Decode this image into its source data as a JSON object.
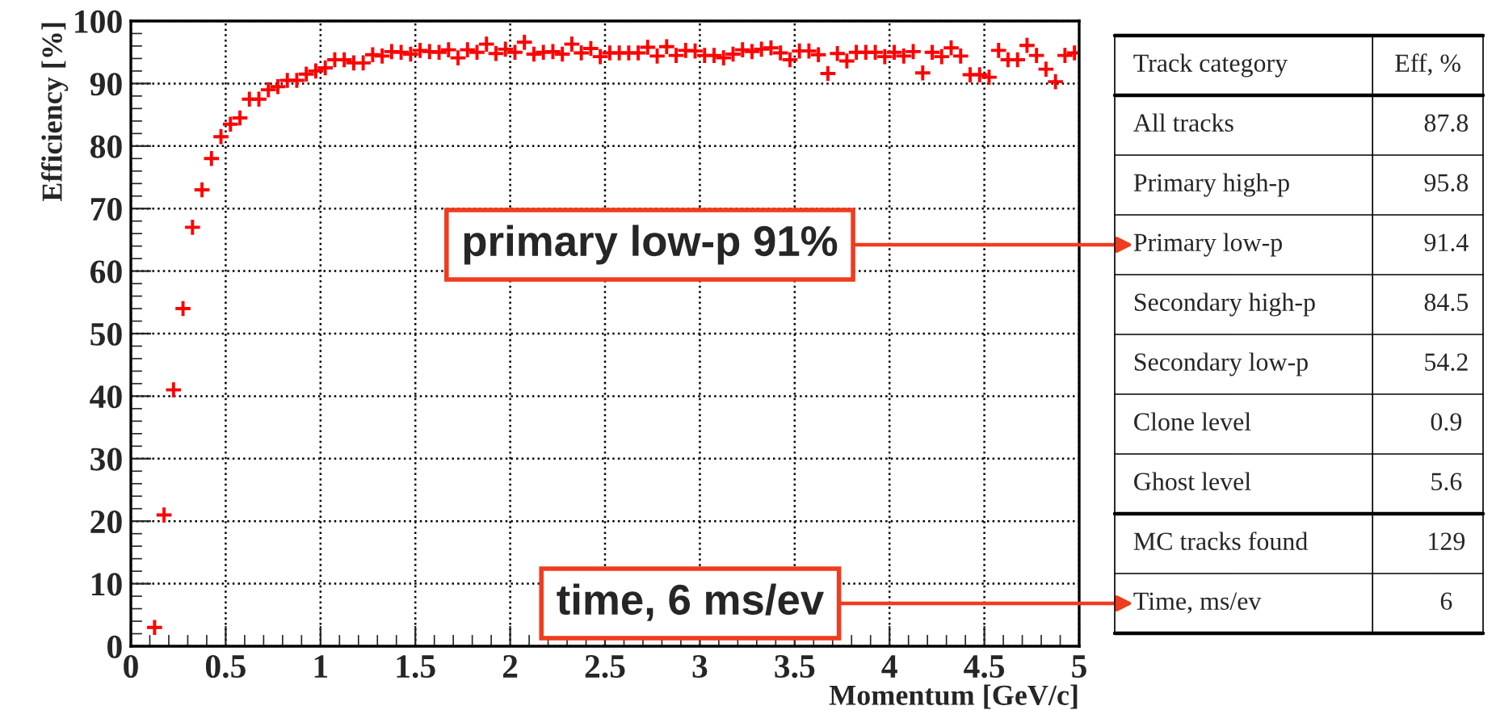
{
  "chart_data": [
    {
      "type": "scatter",
      "xlabel": "Momentum [GeV/c]",
      "ylabel": "Efficiency [%]",
      "x": [
        0.125,
        0.175,
        0.225,
        0.275,
        0.325,
        0.375,
        0.425,
        0.475,
        0.525,
        0.575,
        0.625,
        0.675,
        0.725,
        0.775,
        0.825,
        0.875,
        0.925,
        0.975,
        1.025,
        1.075,
        1.125,
        1.175,
        1.225,
        1.275,
        1.325,
        1.375,
        1.425,
        1.475,
        1.525,
        1.575,
        1.625,
        1.675,
        1.725,
        1.775,
        1.825,
        1.875,
        1.925,
        1.975,
        2.025,
        2.075,
        2.125,
        2.175,
        2.225,
        2.275,
        2.325,
        2.375,
        2.425,
        2.475,
        2.525,
        2.575,
        2.625,
        2.675,
        2.725,
        2.775,
        2.825,
        2.875,
        2.925,
        2.975,
        3.025,
        3.075,
        3.125,
        3.175,
        3.225,
        3.275,
        3.325,
        3.375,
        3.425,
        3.475,
        3.525,
        3.575,
        3.625,
        3.675,
        3.725,
        3.775,
        3.825,
        3.875,
        3.925,
        3.975,
        4.025,
        4.075,
        4.125,
        4.175,
        4.225,
        4.275,
        4.325,
        4.375,
        4.425,
        4.475,
        4.525,
        4.575,
        4.625,
        4.675,
        4.725,
        4.775,
        4.825,
        4.875,
        4.925,
        4.975
      ],
      "series": [
        {
          "color": "#ff0000",
          "values": [
            3,
            21,
            41,
            54,
            67,
            73,
            78,
            81.5,
            83.5,
            84.5,
            87.5,
            87.5,
            89,
            89.5,
            90.5,
            90.5,
            91.5,
            92,
            92.5,
            93.8,
            93.8,
            93.3,
            93.3,
            94.6,
            94.4,
            95.1,
            95.0,
            94.7,
            95.3,
            95.1,
            95.0,
            95.4,
            94.1,
            95.4,
            95.0,
            96.3,
            94.8,
            95.5,
            95.0,
            96.6,
            94.7,
            95.0,
            95.1,
            94.7,
            96.3,
            94.9,
            95.6,
            94.3,
            94.9,
            94.9,
            94.9,
            94.9,
            95.8,
            94.4,
            95.9,
            94.5,
            95.3,
            95.2,
            94.5,
            94.5,
            94.1,
            94.7,
            95.4,
            95.1,
            95.5,
            95.7,
            94.9,
            93.8,
            95.2,
            95.2,
            94.6,
            91.6,
            94.8,
            93.6,
            95.0,
            95.0,
            95.0,
            94.3,
            95.0,
            94.4,
            95.1,
            91.7,
            95.0,
            94.3,
            95.7,
            94.4,
            91.4,
            91.4,
            91.0,
            95.3,
            93.8,
            93.8,
            96.1,
            94.5,
            92.3,
            90.3,
            94.5,
            94.9
          ]
        }
      ],
      "marker": "cross",
      "xlim": [
        0,
        5
      ],
      "ylim": [
        0,
        100
      ],
      "xticks": [
        0,
        0.5,
        1,
        1.5,
        2,
        2.5,
        3,
        3.5,
        4,
        4.5,
        5
      ],
      "yticks": [
        0,
        10,
        20,
        30,
        40,
        50,
        60,
        70,
        80,
        90,
        100
      ],
      "grid": true,
      "annotations": [
        "primary low-p 91%",
        "time, 6 ms/ev"
      ]
    },
    {
      "type": "other",
      "annotations": [
        "Track category",
        "Eff, %"
      ],
      "categories": [
        "All tracks",
        "Primary high-p",
        "Primary low-p",
        "Secondary high-p",
        "Secondary low-p",
        "Clone level",
        "Ghost level",
        "MC tracks found",
        "Time, ms/ev"
      ],
      "values": [
        87.8,
        95.8,
        91.4,
        84.5,
        54.2,
        0.9,
        5.6,
        129,
        6
      ],
      "data_labels": true
    }
  ]
}
